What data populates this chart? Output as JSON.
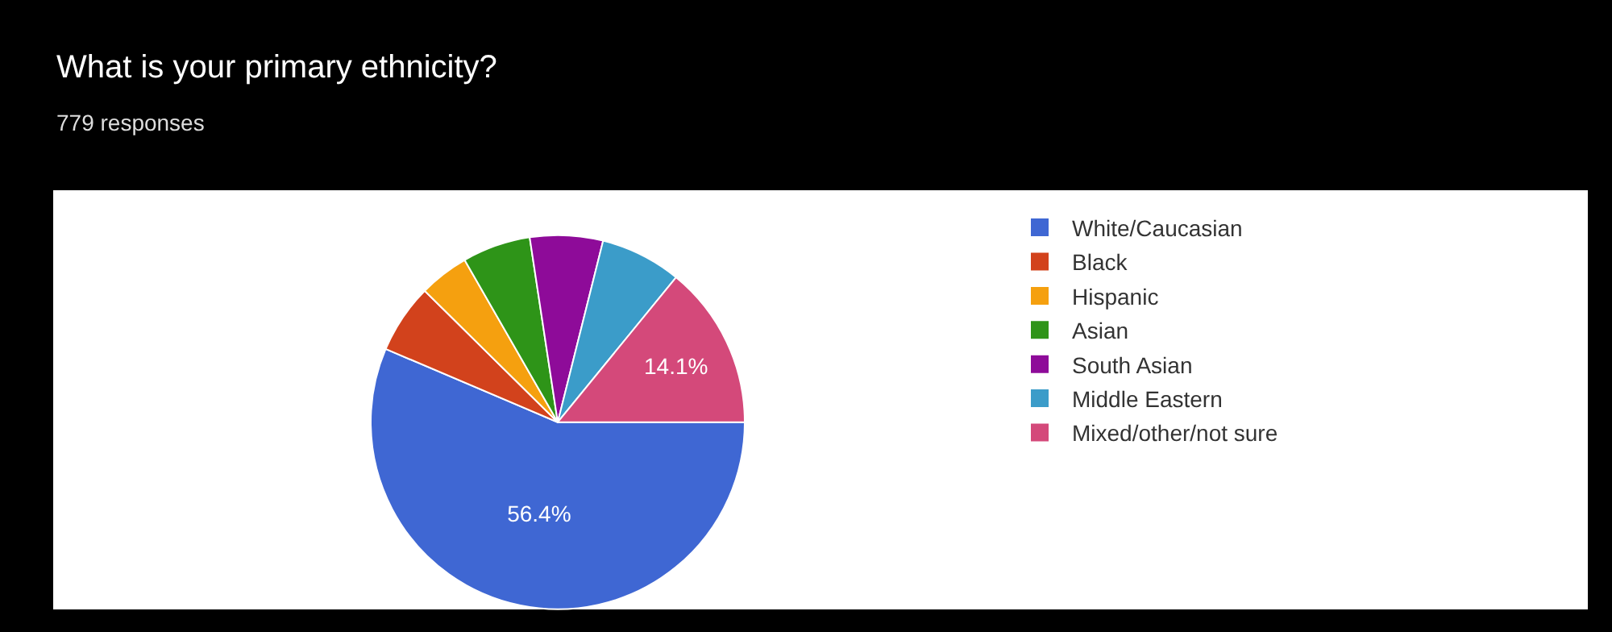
{
  "chart_data": {
    "type": "pie",
    "title": "What is your primary ethnicity?",
    "subtitle": "779 responses",
    "categories": [
      "White/Caucasian",
      "Black",
      "Hispanic",
      "Asian",
      "South Asian",
      "Middle Eastern",
      "Mixed/other/not sure"
    ],
    "values": [
      56.4,
      6.0,
      4.3,
      5.9,
      6.3,
      7.0,
      14.1
    ],
    "value_labels": [
      "56.4%",
      null,
      null,
      null,
      null,
      null,
      "14.1%"
    ],
    "colors": [
      "#3f67d3",
      "#d2421c",
      "#f5a00f",
      "#2e9418",
      "#8e0b99",
      "#3b9cc9",
      "#d4497a"
    ],
    "legend": "right"
  }
}
